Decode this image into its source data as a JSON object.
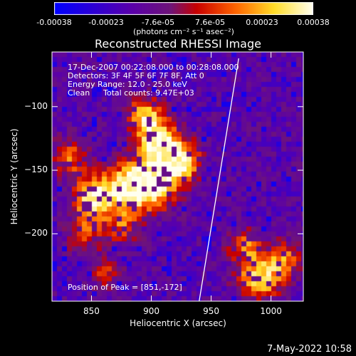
{
  "colorbar": {
    "tick_labels": [
      "-0.00038",
      "-0.00023",
      "-7.6e-05",
      "7.6e-05",
      "0.00023",
      "0.00038"
    ],
    "tick_values": [
      -0.00038,
      -0.00023,
      -7.6e-05,
      7.6e-05,
      0.00023,
      0.00038
    ],
    "range": [
      -0.00038,
      0.00038
    ],
    "units": "(photons cm⁻² s⁻¹ asec⁻²)"
  },
  "info": {
    "time_range": "17-Dec-2007 00:22:08.000 to 00:28:08.000",
    "detectors": "Detectors: 3F 4F 5F 6F 7F 8F, Att 0",
    "energy": "Energy Range: 12.0 - 25.0 keV",
    "clean": "Clean",
    "total_counts": "Total counts: 9.47E+03",
    "peak": "Position of Peak = [851,-172]"
  },
  "footer": {
    "date": "7-May-2022 10:58"
  },
  "chart_data": {
    "type": "heatmap",
    "title": "Reconstructed RHESSI Image",
    "xlabel": "Heliocentric X (arcsec)",
    "ylabel": "Heliocentric Y (arcsec)",
    "xlim": [
      817,
      1027
    ],
    "ylim": [
      -253,
      -57
    ],
    "x_ticks": [
      850,
      900,
      950,
      1000
    ],
    "y_ticks": [
      -100,
      -150,
      -200
    ],
    "x_tick_labels": [
      "850",
      "900",
      "950",
      "1000"
    ],
    "y_tick_labels": [
      "−100",
      "−150",
      "−200"
    ],
    "limb_line": [
      [
        940,
        -253
      ],
      [
        973,
        -62
      ]
    ],
    "peak": [
      851,
      -172
    ],
    "blobs": [
      {
        "x": 851,
        "y": -172,
        "sigma": 11,
        "amp": 1.0
      },
      {
        "x": 878,
        "y": -165,
        "sigma": 13,
        "amp": 0.85
      },
      {
        "x": 900,
        "y": -160,
        "sigma": 14,
        "amp": 0.95
      },
      {
        "x": 915,
        "y": -140,
        "sigma": 13,
        "amp": 0.8
      },
      {
        "x": 895,
        "y": -108,
        "sigma": 10,
        "amp": 0.8
      },
      {
        "x": 905,
        "y": -128,
        "sigma": 11,
        "amp": 0.7
      },
      {
        "x": 832,
        "y": -140,
        "sigma": 10,
        "amp": 0.55
      },
      {
        "x": 928,
        "y": -145,
        "sigma": 9,
        "amp": 0.55
      },
      {
        "x": 845,
        "y": -200,
        "sigma": 10,
        "amp": 0.55
      },
      {
        "x": 875,
        "y": -195,
        "sigma": 9,
        "amp": 0.45
      },
      {
        "x": 862,
        "y": -232,
        "sigma": 8,
        "amp": 0.4
      },
      {
        "x": 990,
        "y": -235,
        "sigma": 12,
        "amp": 0.85
      },
      {
        "x": 1010,
        "y": -220,
        "sigma": 10,
        "amp": 0.6
      },
      {
        "x": 978,
        "y": -210,
        "sigma": 9,
        "amp": 0.55
      }
    ]
  }
}
